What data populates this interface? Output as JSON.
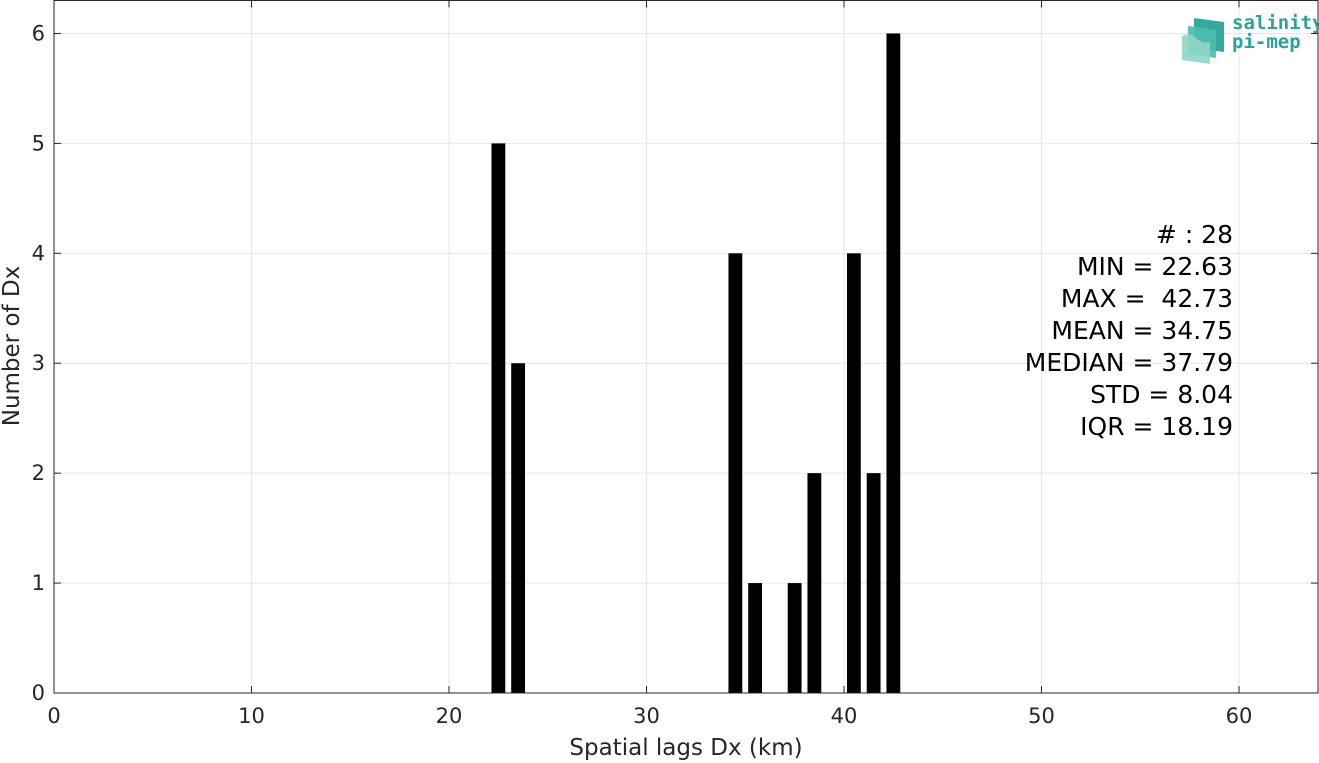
{
  "chart_data": {
    "type": "bar",
    "xlabel": "Spatial lags Dx (km)",
    "ylabel": "Number of Dx",
    "xlim": [
      0,
      64
    ],
    "ylim": [
      0,
      6.3
    ],
    "xticks": [
      0,
      10,
      20,
      30,
      40,
      50,
      60
    ],
    "yticks": [
      0,
      1,
      2,
      3,
      4,
      5,
      6
    ],
    "grid": true,
    "bar_color": "#000000",
    "bar_width_km": 0.7,
    "x": [
      22.5,
      23.5,
      34.5,
      35.5,
      37.5,
      38.5,
      40.5,
      41.5,
      42.5
    ],
    "values": [
      5,
      3,
      4,
      1,
      1,
      2,
      4,
      2,
      6
    ],
    "annotations": [
      "# : 28",
      "MIN = 22.63",
      "MAX =  42.73",
      "MEAN = 34.75",
      "MEDIAN = 37.79",
      "STD = 8.04",
      "IQR = 18.19"
    ]
  },
  "logo": {
    "line1": "salinity",
    "line2": "pi-mep",
    "color": "#2aa39a"
  }
}
